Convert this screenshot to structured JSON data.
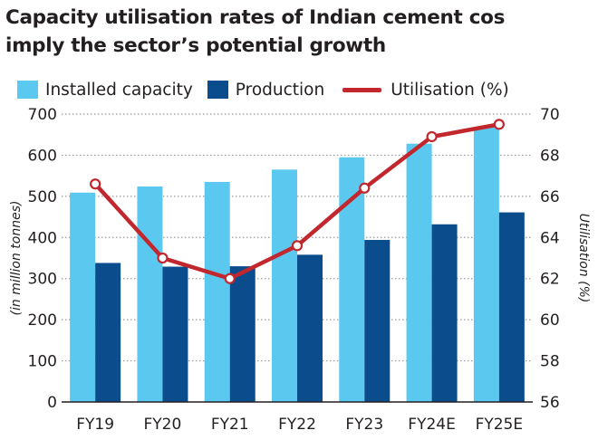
{
  "title_line1": "Capacity utilisation rates of Indian cement cos",
  "title_line2": "imply the sector’s potential growth",
  "colors": {
    "installed": "#5bc8f0",
    "production": "#0b4c8c",
    "utilisation": "#c1272d",
    "grid": "#9a9a9a"
  },
  "chart_data": {
    "type": "bar",
    "title": "Capacity utilisation rates of Indian cement cos imply the sector’s potential growth",
    "categories": [
      "FY19",
      "FY20",
      "FY21",
      "FY22",
      "FY23",
      "FY24E",
      "FY25E"
    ],
    "series": [
      {
        "name": "Installed capacity",
        "type": "bar",
        "axis": "left",
        "values": [
          509,
          524,
          535,
          565,
          595,
          628,
          668
        ]
      },
      {
        "name": "Production",
        "type": "bar",
        "axis": "left",
        "values": [
          338,
          329,
          330,
          358,
          394,
          432,
          461
        ]
      },
      {
        "name": "Utilisation (%)",
        "type": "line",
        "axis": "right",
        "values": [
          66.6,
          63.0,
          62.0,
          63.6,
          66.4,
          68.9,
          69.5
        ]
      }
    ],
    "ylabel": "(in million tonnes)",
    "ylim": [
      0,
      700
    ],
    "yticks": [
      0,
      100,
      200,
      300,
      400,
      500,
      600,
      700
    ],
    "y2label": "Utilisation (%)",
    "y2lim": [
      56,
      70
    ],
    "y2ticks": [
      56,
      58,
      60,
      62,
      64,
      66,
      68,
      70
    ],
    "grid": "horizontal dotted",
    "legend": "top"
  }
}
